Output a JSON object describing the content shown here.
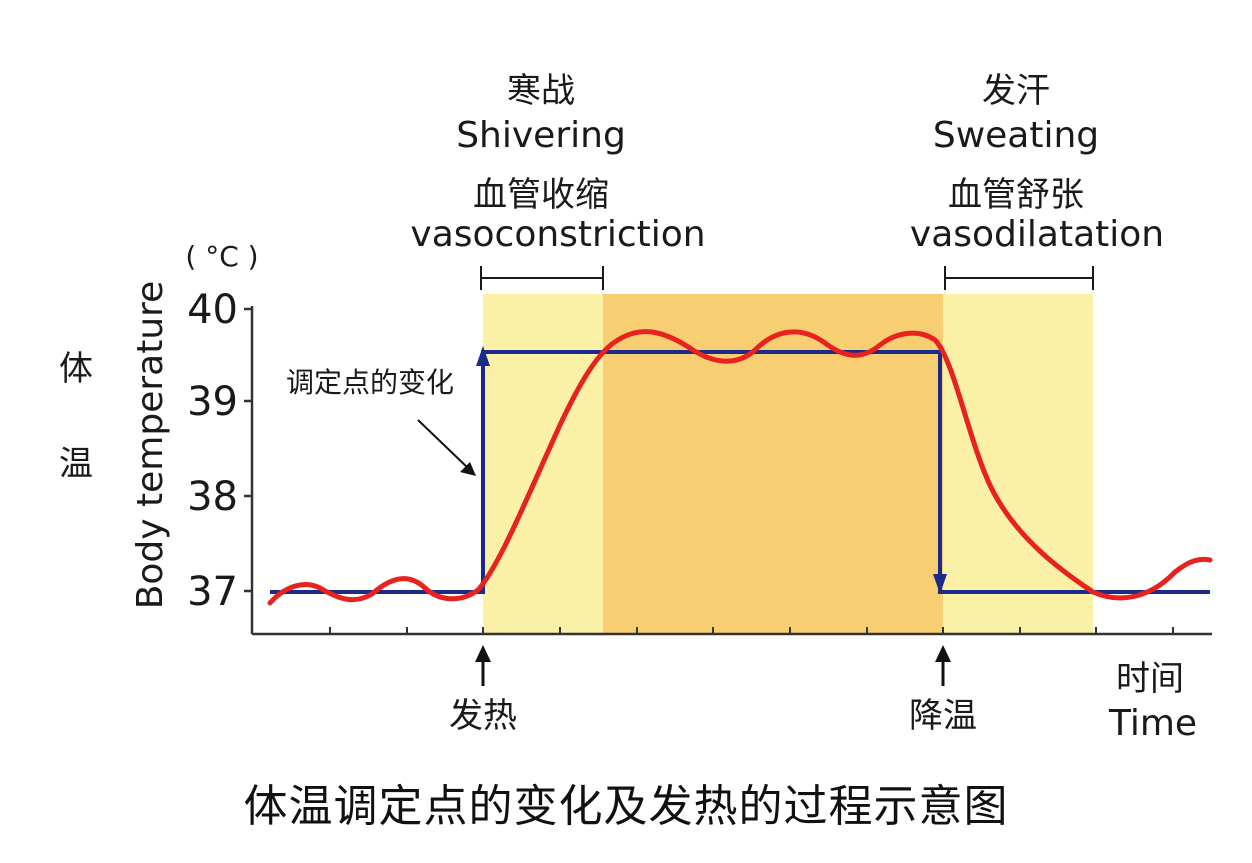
{
  "caption": "体温调定点的变化及发热的过程示意图",
  "phases": {
    "shivering_cn": "寒战",
    "shivering_en": "Shivering",
    "vasoconstriction_cn": "血管收缩",
    "vasoconstriction_en": "vasoconstriction",
    "sweating_cn": "发汗",
    "sweating_en": "Sweating",
    "vasodilatation_cn": "血管舒张",
    "vasodilatation_en": "vasodilatation"
  },
  "axis": {
    "unit": "( °C )",
    "ylabel_cn_1": "体",
    "ylabel_cn_2": "温",
    "ylabel_en": "Body temperature",
    "ticks": [
      "40",
      "39",
      "38",
      "37"
    ],
    "time_cn": "时间",
    "time_en": "Time"
  },
  "annotations": {
    "setpoint_change": "调定点的变化",
    "fever_onset": "发热",
    "cooling": "降温"
  },
  "colors": {
    "setpoint_line": "#1c2a8c",
    "body_temp_curve": "#e8231f",
    "light_band": "#fbf1a6",
    "dark_band": "#f7cf72"
  }
}
